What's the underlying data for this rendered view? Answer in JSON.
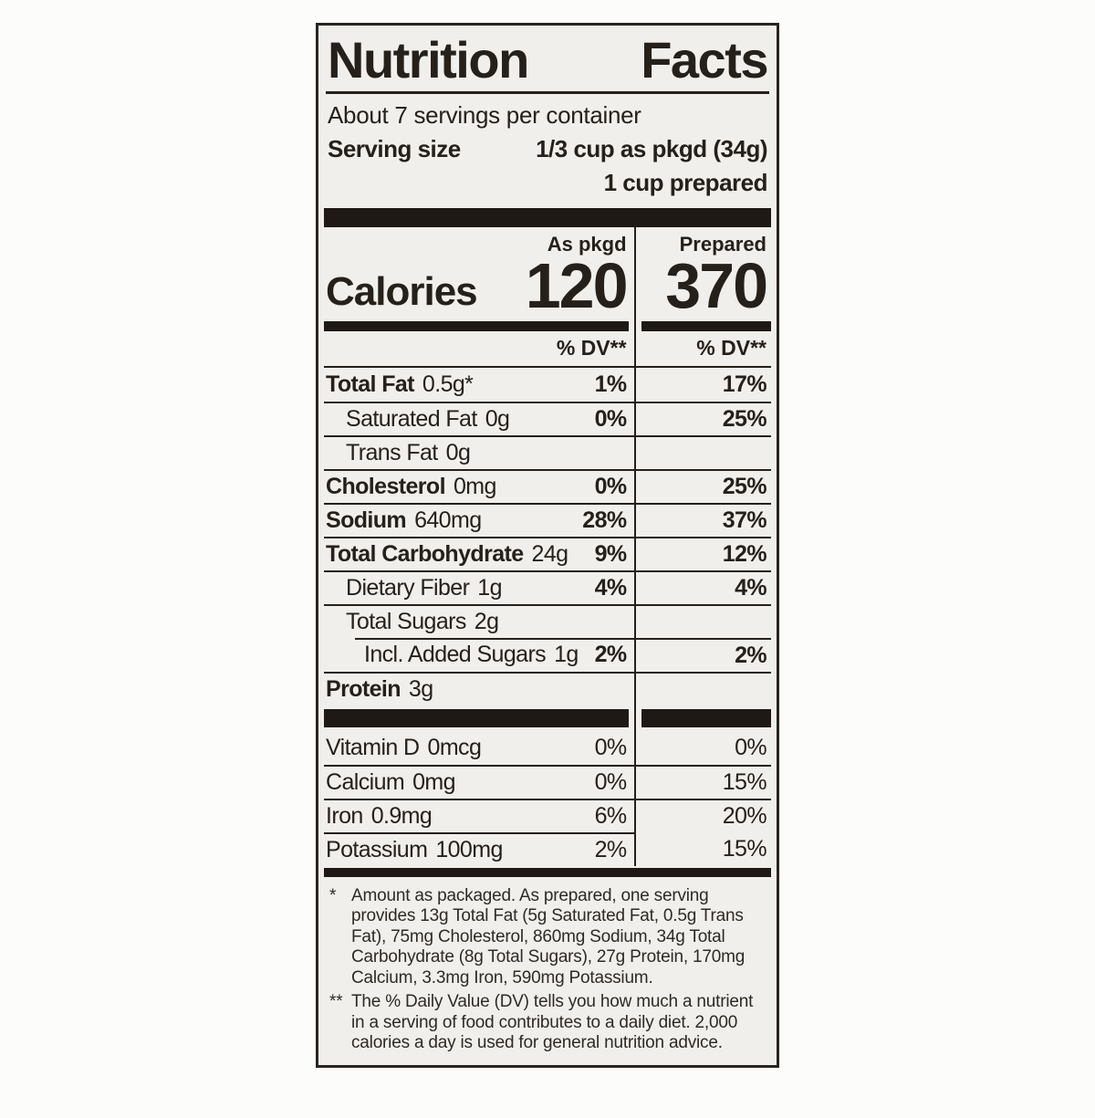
{
  "colors": {
    "ink": "#26201a",
    "label_bg": "#f1efeb",
    "page_bg": "#fcfcfa",
    "bar": "#1e1914"
  },
  "label": {
    "title_words": [
      "Nutrition",
      "Facts"
    ],
    "servings_per_container": "About 7 servings per container",
    "serving_size_label": "Serving size",
    "serving_size_value": "1/3 cup as pkgd (34g)",
    "serving_size_prepared": "1 cup prepared",
    "columns": {
      "left": "As pkgd",
      "right": "Prepared"
    },
    "calories": {
      "label": "Calories",
      "as_pkgd": "120",
      "prepared": "370"
    },
    "dv_header": "% DV**",
    "rows": [
      {
        "name": "Total Fat",
        "amount": "0.5g*",
        "pkgd": "1%",
        "prep": "17%"
      },
      {
        "name": "Saturated Fat",
        "amount": "0g",
        "pkgd": "0%",
        "prep": "25%"
      },
      {
        "name": "Trans Fat",
        "amount": "0g",
        "pkgd": "",
        "prep": ""
      },
      {
        "name": "Cholesterol",
        "amount": "0mg",
        "pkgd": "0%",
        "prep": "25%"
      },
      {
        "name": "Sodium",
        "amount": "640mg",
        "pkgd": "28%",
        "prep": "37%"
      },
      {
        "name": "Total Carbohydrate",
        "amount": "24g",
        "pkgd": "9%",
        "prep": "12%"
      },
      {
        "name": "Dietary Fiber",
        "amount": "1g",
        "pkgd": "4%",
        "prep": "4%"
      },
      {
        "name": "Total Sugars",
        "amount": "2g",
        "pkgd": "",
        "prep": ""
      },
      {
        "name": "Incl. Added Sugars",
        "amount": "1g",
        "pkgd": "2%",
        "prep": "2%"
      },
      {
        "name": "Protein",
        "amount": "3g",
        "pkgd": "",
        "prep": ""
      }
    ],
    "vitamins": [
      {
        "name": "Vitamin D",
        "amount": "0mcg",
        "pkgd": "0%",
        "prep": "0%"
      },
      {
        "name": "Calcium",
        "amount": "0mg",
        "pkgd": "0%",
        "prep": "15%"
      },
      {
        "name": "Iron",
        "amount": "0.9mg",
        "pkgd": "6%",
        "prep": "20%"
      },
      {
        "name": "Potassium",
        "amount": "100mg",
        "pkgd": "2%",
        "prep": "15%"
      }
    ],
    "footnotes": [
      {
        "marker": "*",
        "text": "Amount as packaged. As prepared, one serving provides 13g Total Fat (5g Saturated Fat, 0.5g Trans Fat), 75mg Cholesterol, 860mg Sodium, 34g Total Carbohydrate (8g Total Sugars), 27g Protein, 170mg Calcium, 3.3mg Iron, 590mg Potassium."
      },
      {
        "marker": "**",
        "text": "The % Daily Value (DV) tells you how much a nutrient in a serving of food contributes to a daily diet. 2,000 calories a day is used for general nutrition advice."
      }
    ]
  }
}
